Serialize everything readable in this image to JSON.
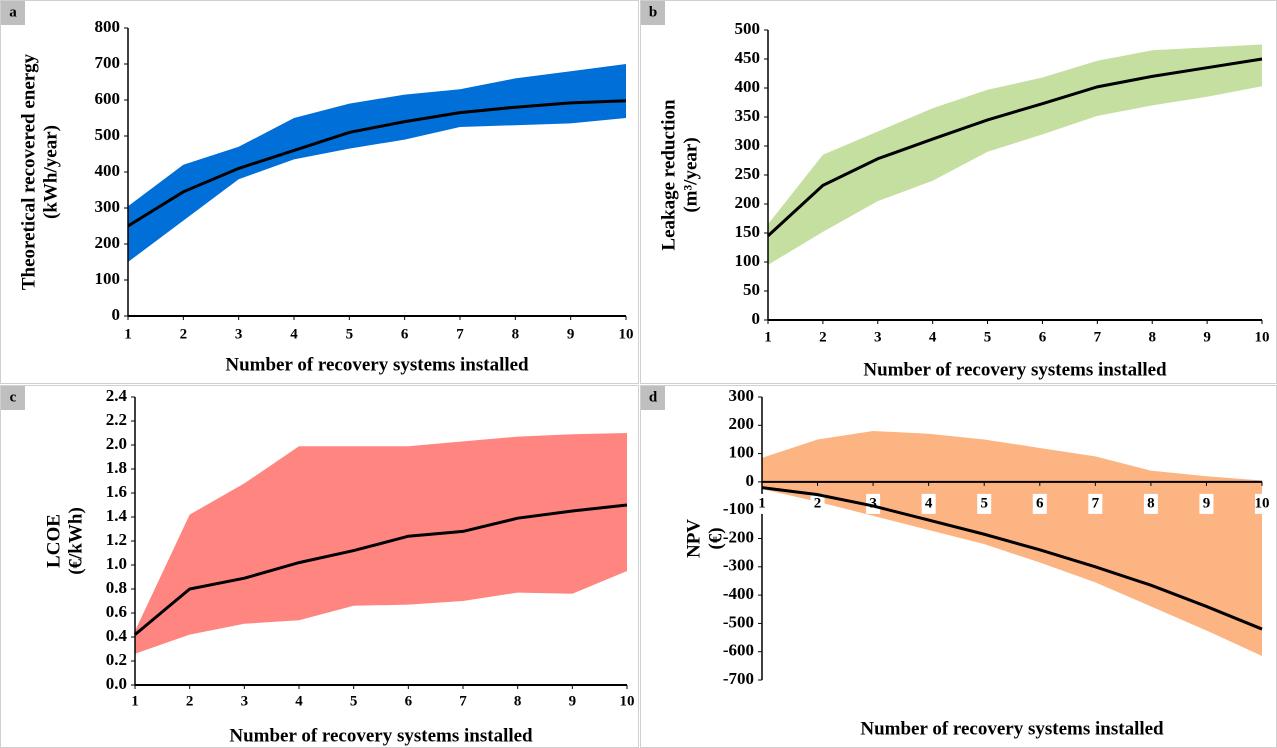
{
  "chart_data": [
    {
      "type": "line",
      "panel": "a",
      "x_label": "Number of recovery systems installed",
      "y_label": [
        "Theoretical recovered energy",
        "(kWh/year)"
      ],
      "x": [
        1,
        2,
        3,
        4,
        5,
        6,
        7,
        8,
        9,
        10
      ],
      "xlim": [
        1,
        10
      ],
      "xticks": [
        1,
        2,
        3,
        4,
        5,
        6,
        7,
        8,
        9,
        10
      ],
      "ylim": [
        0,
        800
      ],
      "yticks": [
        0,
        100,
        200,
        300,
        400,
        500,
        600,
        700,
        800
      ],
      "series": [
        {
          "color": "#000000",
          "values": [
            250,
            345,
            410,
            460,
            510,
            540,
            565,
            580,
            592,
            598
          ]
        }
      ],
      "band": {
        "color": "#0070d8",
        "lower": [
          150,
          265,
          380,
          435,
          465,
          490,
          525,
          530,
          535,
          550
        ],
        "upper": [
          305,
          420,
          470,
          550,
          590,
          615,
          630,
          660,
          680,
          700
        ]
      }
    },
    {
      "type": "line",
      "panel": "b",
      "x_label": "Number of recovery systems installed",
      "y_label": [
        "Leakage reduction",
        "(m³/year)"
      ],
      "x": [
        1,
        2,
        3,
        4,
        5,
        6,
        7,
        8,
        9,
        10
      ],
      "xlim": [
        1,
        10
      ],
      "xticks": [
        1,
        2,
        3,
        4,
        5,
        6,
        7,
        8,
        9,
        10
      ],
      "ylim": [
        0,
        500
      ],
      "yticks": [
        0,
        50,
        100,
        150,
        200,
        250,
        300,
        350,
        400,
        450,
        500
      ],
      "series": [
        {
          "color": "#000000",
          "values": [
            145,
            232,
            278,
            312,
            345,
            373,
            402,
            420,
            435,
            450
          ]
        }
      ],
      "band": {
        "color": "#c5dfa0",
        "lower": [
          95,
          152,
          205,
          240,
          290,
          320,
          352,
          370,
          385,
          403
        ],
        "upper": [
          165,
          285,
          325,
          365,
          397,
          418,
          447,
          465,
          470,
          475
        ]
      }
    },
    {
      "type": "line",
      "panel": "c",
      "x_label": "Number of recovery systems installed",
      "y_label": [
        "LCOE",
        "(€/kWh)"
      ],
      "x": [
        1,
        2,
        3,
        4,
        5,
        6,
        7,
        8,
        9,
        10
      ],
      "xlim": [
        1,
        10
      ],
      "xticks": [
        1,
        2,
        3,
        4,
        5,
        6,
        7,
        8,
        9,
        10
      ],
      "ylim": [
        0,
        2.4
      ],
      "yticks": [
        {
          "value": 0,
          "label": "0.0"
        },
        0.2,
        0.4,
        0.6,
        0.8,
        {
          "value": 1,
          "label": "1.0"
        },
        1.2,
        1.4,
        1.6,
        1.8,
        {
          "value": 2,
          "label": "2.0"
        },
        2.2,
        2.4
      ],
      "series": [
        {
          "color": "#000000",
          "values": [
            0.42,
            0.8,
            0.89,
            1.02,
            1.12,
            1.24,
            1.28,
            1.39,
            1.45,
            1.5
          ]
        }
      ],
      "band": {
        "color": "#ff8680",
        "lower": [
          0.26,
          0.42,
          0.51,
          0.54,
          0.66,
          0.67,
          0.7,
          0.77,
          0.76,
          0.95
        ],
        "upper": [
          0.45,
          1.42,
          1.68,
          1.99,
          1.99,
          1.99,
          2.03,
          2.07,
          2.09,
          2.1
        ]
      }
    },
    {
      "type": "line",
      "panel": "d",
      "x_label": "Number of recovery systems installed",
      "y_label": [
        "NPV",
        "(€)"
      ],
      "x": [
        1,
        2,
        3,
        4,
        5,
        6,
        7,
        8,
        9,
        10
      ],
      "xlim": [
        1,
        10
      ],
      "xticks": [
        1,
        2,
        3,
        4,
        5,
        6,
        7,
        8,
        9,
        10
      ],
      "ylim": [
        -700,
        300
      ],
      "yticks": [
        -700,
        -600,
        -500,
        -400,
        -300,
        -200,
        -100,
        0,
        100,
        200,
        300
      ],
      "series": [
        {
          "color": "#000000",
          "values": [
            -20,
            -45,
            -85,
            -135,
            -185,
            -240,
            -300,
            -365,
            -440,
            -520
          ]
        }
      ],
      "band": {
        "color": "#fcb482",
        "lower": [
          -25,
          -70,
          -120,
          -170,
          -220,
          -285,
          -355,
          -440,
          -525,
          -615
        ],
        "upper": [
          85,
          150,
          180,
          170,
          150,
          120,
          90,
          40,
          20,
          5
        ]
      }
    }
  ]
}
